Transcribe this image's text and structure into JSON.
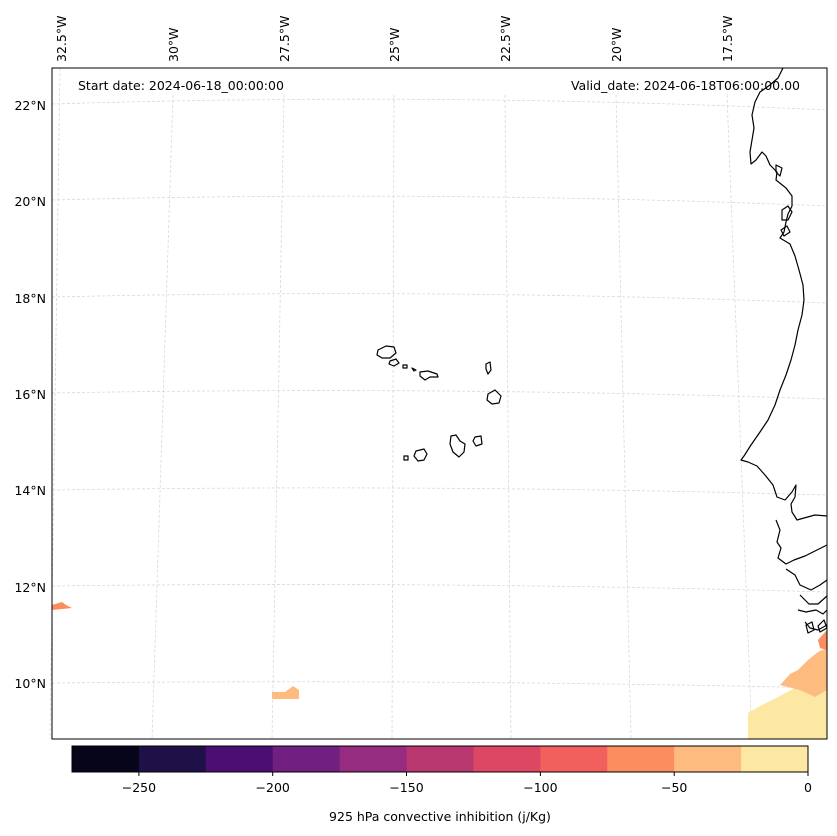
{
  "map": {
    "start_date": "Start date: 2024-06-18_00:00:00",
    "valid_date": "Valid_date: 2024-06-18T06:00:00.00",
    "lon_labels": [
      "32.5°W",
      "30°W",
      "27.5°W",
      "25°W",
      "22.5°W",
      "20°W",
      "17.5°W"
    ],
    "lat_labels": [
      "22°N",
      "20°N",
      "18°N",
      "16°N",
      "14°N",
      "12°N",
      "10°N"
    ],
    "gridlines": true
  },
  "colorbar": {
    "label": "925 hPa convective inhibition (j/Kg)",
    "ticks": [
      "−250",
      "−200",
      "−150",
      "−100",
      "−50",
      "0"
    ],
    "levels": [
      -275,
      -250,
      -225,
      -200,
      -175,
      -150,
      -125,
      -100,
      -75,
      -50,
      -25,
      0
    ],
    "colors": [
      "#06051a",
      "#1f1147",
      "#4b0f73",
      "#711f81",
      "#952c80",
      "#b8376f",
      "#dc4863",
      "#f1605d",
      "#fc8d5e",
      "#febb80",
      "#fde8a3"
    ]
  }
}
